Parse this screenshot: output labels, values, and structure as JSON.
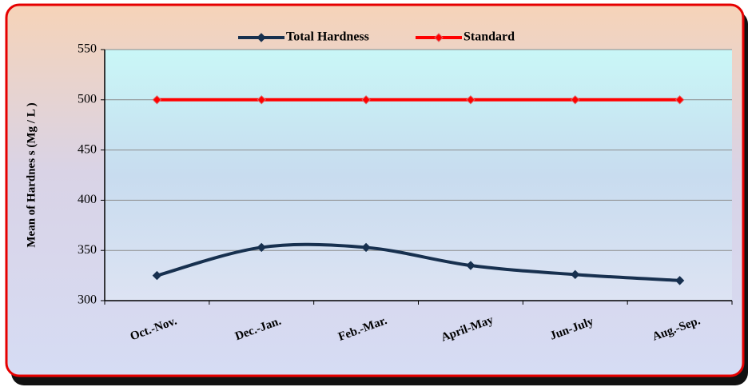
{
  "chart_data": {
    "type": "line",
    "categories": [
      "Oct.-Nov.",
      "Dec.-Jan.",
      "Feb.-Mar.",
      "April-May",
      "Jun-July",
      "Aug.-Sep."
    ],
    "series": [
      {
        "name": "Total Hardness",
        "color": "#17304f",
        "values": [
          325,
          353,
          353,
          335,
          326,
          320
        ]
      },
      {
        "name": "Standard",
        "color": "#ff0000",
        "values": [
          500,
          500,
          500,
          500,
          500,
          500
        ]
      }
    ],
    "y_label": "Mean of Hardnes s (Mg / L )",
    "ylim": [
      300,
      550
    ],
    "yticks": [
      300,
      350,
      400,
      450,
      500,
      550
    ],
    "grid": true,
    "smooth": true
  }
}
